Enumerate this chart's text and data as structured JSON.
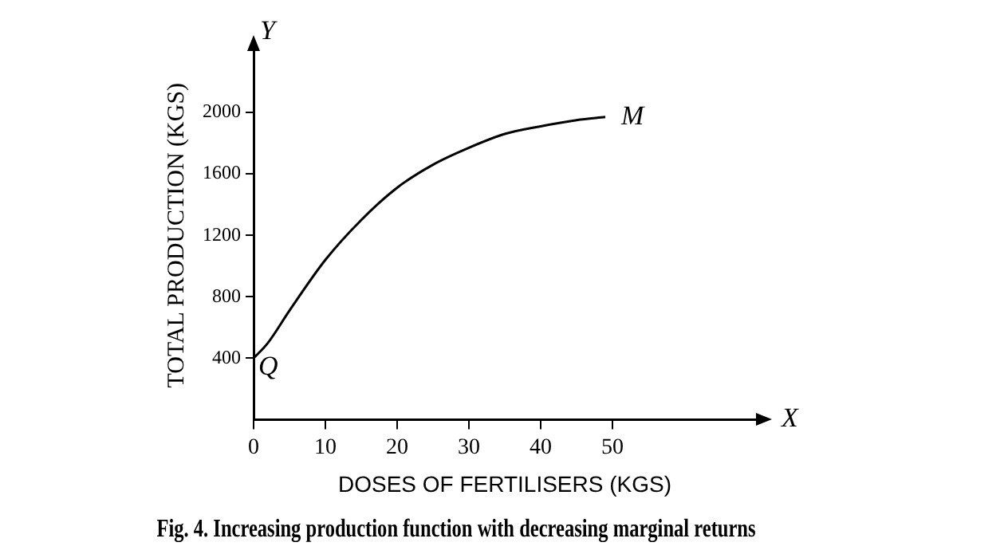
{
  "chart_data": {
    "type": "line",
    "title": "Fig. 4. Increasing production function with decreasing marginal returns",
    "xlabel": "DOSES OF FERTILISERS (KGS)",
    "ylabel": "TOTAL PRODUCTION (KGS)",
    "x": [
      0,
      2,
      5,
      10,
      15,
      20,
      25,
      30,
      35,
      40,
      45,
      49
    ],
    "series": [
      {
        "color": "#000000",
        "values": [
          400,
          500,
          710,
          1040,
          1300,
          1510,
          1660,
          1770,
          1860,
          1910,
          1950,
          1970
        ]
      }
    ],
    "xlim": [
      0,
      70
    ],
    "xticks": [
      0,
      10,
      20,
      30,
      40,
      50
    ],
    "ylim": [
      0,
      2400
    ],
    "yticks": [
      400,
      800,
      1200,
      1600,
      2000
    ],
    "grid": false,
    "legend": false,
    "marker": "none",
    "line_style": "solid",
    "annotations": [
      {
        "text": "Q",
        "x": 0,
        "y": 400
      },
      {
        "text": "M",
        "x": 49,
        "y": 1970
      },
      "X",
      "Y"
    ]
  }
}
